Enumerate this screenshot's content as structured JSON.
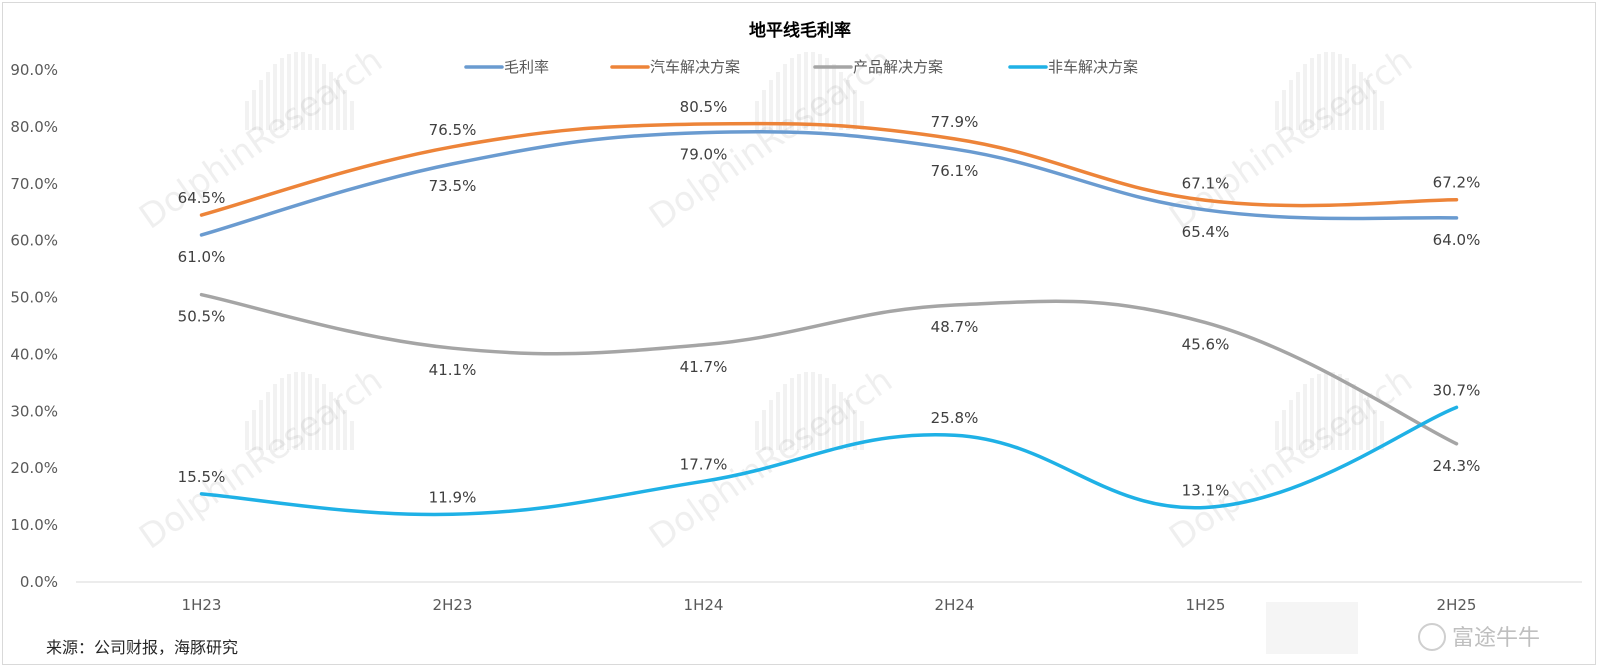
{
  "chart_data": {
    "type": "line",
    "title": "地平线毛利率",
    "categories": [
      "1H23",
      "2H23",
      "1H24",
      "2H24",
      "1H25",
      "2H25"
    ],
    "ylim": [
      0,
      90
    ],
    "yticks": [
      "0.0%",
      "10.0%",
      "20.0%",
      "30.0%",
      "40.0%",
      "50.0%",
      "60.0%",
      "70.0%",
      "80.0%",
      "90.0%"
    ],
    "grid": false,
    "legend_position": "top-center",
    "series": [
      {
        "name": "毛利率",
        "color": "#6a9bd0",
        "values": [
          61.0,
          73.5,
          79.0,
          76.1,
          65.4,
          64.0
        ],
        "labels": [
          "61.0%",
          "73.5%",
          "79.0%",
          "76.1%",
          "65.4%",
          "64.0%"
        ],
        "label_pos": [
          "below",
          "below",
          "below",
          "below",
          "below",
          "below"
        ]
      },
      {
        "name": "汽车解决方案",
        "color": "#ed8439",
        "values": [
          64.5,
          76.5,
          80.5,
          77.9,
          67.1,
          67.2
        ],
        "labels": [
          "64.5%",
          "76.5%",
          "80.5%",
          "77.9%",
          "67.1%",
          "67.2%"
        ],
        "label_pos": [
          "above",
          "above",
          "above",
          "above",
          "above",
          "above"
        ]
      },
      {
        "name": "产品解决方案",
        "color": "#a5a5a5",
        "values": [
          50.5,
          41.1,
          41.7,
          48.7,
          45.6,
          24.3
        ],
        "labels": [
          "50.5%",
          "41.1%",
          "41.7%",
          "48.7%",
          "45.6%",
          "24.3%"
        ],
        "label_pos": [
          "below",
          "below",
          "below",
          "below",
          "below",
          "below"
        ]
      },
      {
        "name": "非车解决方案",
        "color": "#1fb1e6",
        "values": [
          15.5,
          11.9,
          17.7,
          25.8,
          13.1,
          30.7
        ],
        "labels": [
          "15.5%",
          "11.9%",
          "17.7%",
          "25.8%",
          "13.1%",
          "30.7%"
        ],
        "label_pos": [
          "above",
          "above",
          "above",
          "above",
          "above",
          "above"
        ]
      }
    ]
  },
  "source": "来源：公司财报，海豚研究",
  "watermark": "DolphinResearch",
  "logo_text": "富途牛牛"
}
